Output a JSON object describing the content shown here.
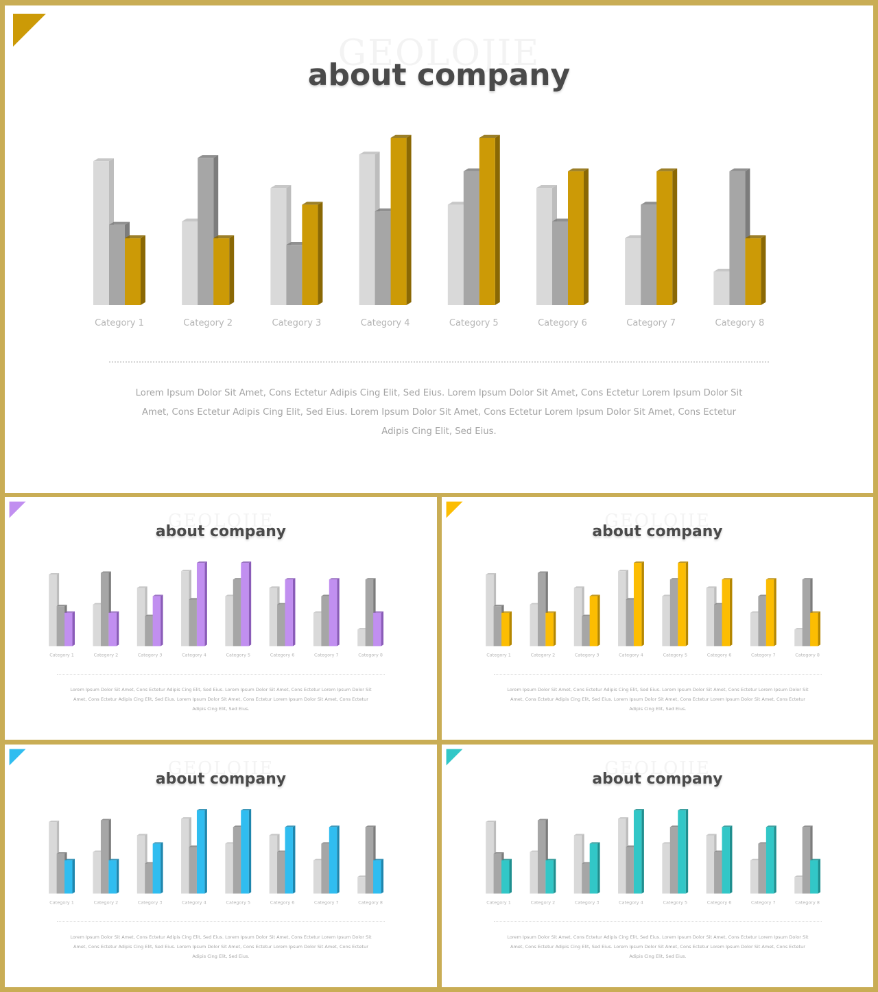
{
  "slides": [
    {
      "watermark": "GEOLOJIE",
      "title": "about company",
      "accent": "#cc9a06",
      "accent_dark": "#8a6804",
      "body": "Lorem Ipsum Dolor Sit Amet, Cons Ectetur Adipis Cing Elit, Sed  Eius. Lorem Ipsum Dolor Sit Amet, Cons Ectetur Lorem Ipsum Dolor Sit Amet, Cons Ectetur Adipis Cing Elit, Sed  Eius. Lorem Ipsum Dolor Sit Amet, Cons Ectetur Lorem Ipsum Dolor Sit Amet, Cons Ectetur Adipis Cing Elit, Sed  Eius."
    },
    {
      "watermark": "GEOLOJIE",
      "title": "about company",
      "accent": "#c18ff0",
      "accent_dark": "#8a5cb8",
      "body": "Lorem Ipsum Dolor Sit Amet, Cons Ectetur Adipis Cing Elit, Sed  Eius. Lorem Ipsum Dolor Sit Amet, Cons Ectetur Lorem Ipsum Dolor Sit Amet, Cons Ectetur Adipis Cing Elit, Sed  Eius. Lorem Ipsum Dolor Sit Amet, Cons Ectetur Lorem Ipsum Dolor Sit Amet, Cons Ectetur Adipis Cing Elit, Sed  Eius."
    },
    {
      "watermark": "GEOLOJIE",
      "title": "about company",
      "accent": "#fcbd02",
      "accent_dark": "#b58700",
      "body": "Lorem Ipsum Dolor Sit Amet, Cons Ectetur Adipis Cing Elit, Sed  Eius. Lorem Ipsum Dolor Sit Amet, Cons Ectetur Lorem Ipsum Dolor Sit Amet, Cons Ectetur Adipis Cing Elit, Sed  Eius. Lorem Ipsum Dolor Sit Amet, Cons Ectetur Lorem Ipsum Dolor Sit Amet, Cons Ectetur Adipis Cing Elit, Sed  Eius."
    },
    {
      "watermark": "GEOLOJIE",
      "title": "about company",
      "accent": "#30bdf0",
      "accent_dark": "#1f86ad",
      "body": "Lorem Ipsum Dolor Sit Amet, Cons Ectetur Adipis Cing Elit, Sed  Eius. Lorem Ipsum Dolor Sit Amet, Cons Ectetur Lorem Ipsum Dolor Sit Amet, Cons Ectetur Adipis Cing Elit, Sed  Eius. Lorem Ipsum Dolor Sit Amet, Cons Ectetur Lorem Ipsum Dolor Sit Amet, Cons Ectetur Adipis Cing Elit, Sed  Eius."
    },
    {
      "watermark": "GEOLOJIE",
      "title": "about company",
      "accent": "#32c7c7",
      "accent_dark": "#1f8f8f",
      "body": "Lorem Ipsum Dolor Sit Amet, Cons Ectetur Adipis Cing Elit, Sed  Eius. Lorem Ipsum Dolor Sit Amet, Cons Ectetur Lorem Ipsum Dolor Sit Amet, Cons Ectetur Adipis Cing Elit, Sed  Eius. Lorem Ipsum Dolor Sit Amet, Cons Ectetur Lorem Ipsum Dolor Sit Amet, Cons Ectetur Adipis Cing Elit, Sed  Eius."
    }
  ],
  "chart_data": {
    "type": "bar",
    "categories": [
      "Category 1",
      "Category 2",
      "Category 3",
      "Category 4",
      "Category 5",
      "Category 6",
      "Category 7",
      "Category 8"
    ],
    "series": [
      {
        "values": [
          4.3,
          2.5,
          3.5,
          4.5,
          3.0,
          3.5,
          2.0,
          1.0
        ],
        "color": "#d9d9d9"
      },
      {
        "values": [
          2.4,
          4.4,
          1.8,
          2.8,
          4.0,
          2.5,
          3.0,
          4.0
        ],
        "color": "#a6a6a6"
      },
      {
        "values": [
          2.0,
          2.0,
          3.0,
          5.0,
          5.0,
          4.0,
          4.0,
          2.0
        ],
        "color": "accent"
      }
    ],
    "ylim": [
      0,
      5
    ],
    "grid": false,
    "legend": "none"
  }
}
